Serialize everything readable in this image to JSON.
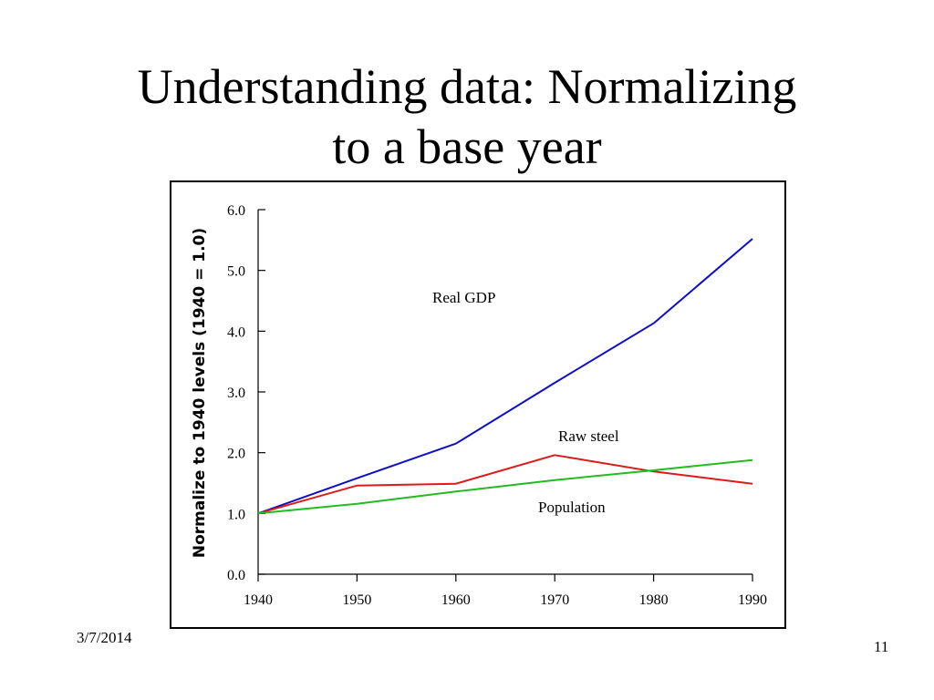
{
  "slide": {
    "title_line1": "Understanding data: Normalizing",
    "title_line2": "to a base year",
    "date": "3/7/2014",
    "page_number": "11"
  },
  "colors": {
    "real_gdp": "#1010c0",
    "raw_steel": "#dd1a1a",
    "population": "#22bb22"
  },
  "chart_data": {
    "type": "line",
    "title": "",
    "xlabel": "",
    "ylabel": "Normalize to 1940 levels (1940 = 1.0)",
    "x": [
      1940,
      1950,
      1960,
      1970,
      1980,
      1990
    ],
    "xlim": [
      1940,
      1990
    ],
    "ylim": [
      0,
      6
    ],
    "x_tick_labels": [
      "1940",
      "1950",
      "1960",
      "1970",
      "1980",
      "1990"
    ],
    "y_tick_labels": [
      "0.0",
      "1.0",
      "2.0",
      "3.0",
      "4.0",
      "5.0",
      "6.0"
    ],
    "y_ticks": [
      0,
      1,
      2,
      3,
      4,
      5,
      6
    ],
    "grid": false,
    "series": [
      {
        "name": "Real GDP",
        "key": "real_gdp",
        "values": [
          1.0,
          1.58,
          2.15,
          3.15,
          4.13,
          5.52
        ]
      },
      {
        "name": "Raw steel",
        "key": "raw_steel",
        "values": [
          1.0,
          1.46,
          1.49,
          1.96,
          1.69,
          1.49
        ]
      },
      {
        "name": "Population",
        "key": "population",
        "values": [
          1.0,
          1.16,
          1.36,
          1.55,
          1.71,
          1.88
        ]
      }
    ],
    "annotations": {
      "real_gdp": "Real GDP",
      "raw_steel": "Raw steel",
      "population": "Population"
    }
  }
}
